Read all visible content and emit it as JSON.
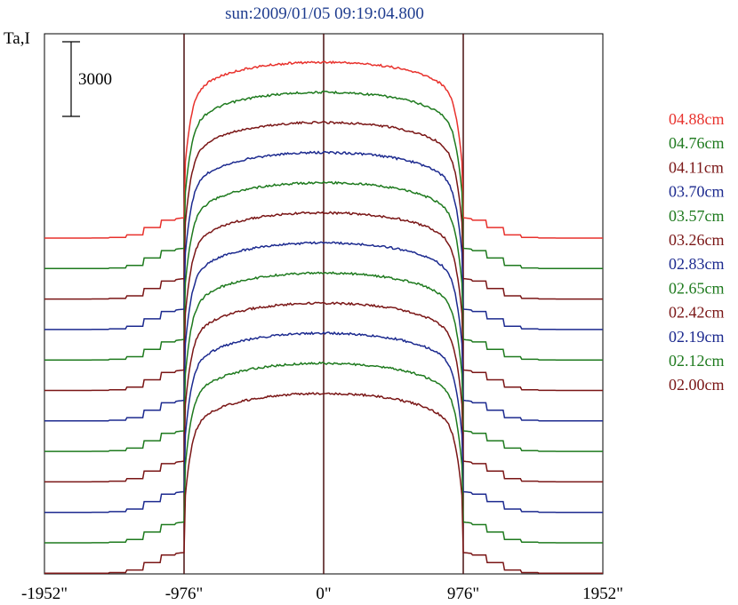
{
  "chart_data": {
    "type": "line",
    "title": "sun:2009/01/05 09:19:04.800",
    "ylabel": "Ta,I",
    "xlabel": "",
    "x_ticks": [
      "-1952\"",
      "-976\"",
      "0\"",
      "976\"",
      "1952\""
    ],
    "x_tick_values": [
      -1952,
      -976,
      0,
      976,
      1952
    ],
    "xlim": [
      -1952,
      1952
    ],
    "vertical_lines_at": [
      -976,
      0,
      976
    ],
    "scale_bar": {
      "label": "3000",
      "value": 3000
    },
    "grid": false,
    "legend_position": "right",
    "series": [
      {
        "name": "04.88cm",
        "color": "#e8312c"
      },
      {
        "name": "04.76cm",
        "color": "#1e7a1e"
      },
      {
        "name": "04.11cm",
        "color": "#7a1616"
      },
      {
        "name": "03.70cm",
        "color": "#1c2a8f"
      },
      {
        "name": "03.57cm",
        "color": "#1e7a1e"
      },
      {
        "name": "03.26cm",
        "color": "#7a1616"
      },
      {
        "name": "02.83cm",
        "color": "#1c2a8f"
      },
      {
        "name": "02.65cm",
        "color": "#1e7a1e"
      },
      {
        "name": "02.42cm",
        "color": "#7a1616"
      },
      {
        "name": "02.19cm",
        "color": "#1c2a8f"
      },
      {
        "name": "02.12cm",
        "color": "#1e7a1e"
      },
      {
        "name": "02.00cm",
        "color": "#7a1616"
      }
    ]
  }
}
